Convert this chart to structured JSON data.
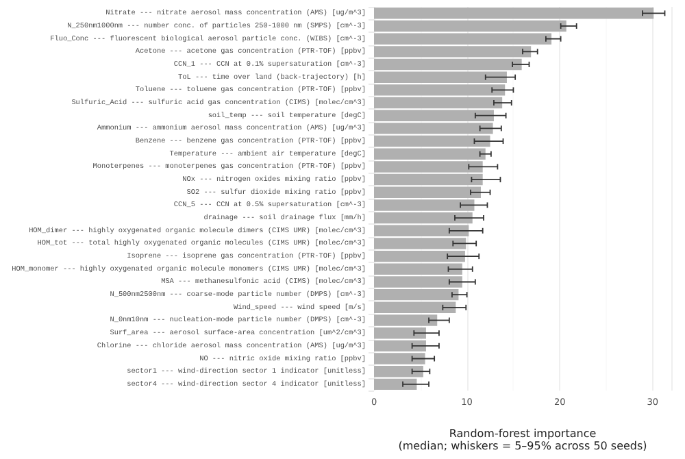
{
  "chart_data": {
    "type": "bar",
    "orientation": "horizontal",
    "xlabel": "Random-forest importance\n(median; whiskers = 5–95% across 50 seeds)",
    "categories": [
      "Nitrate --- nitrate aerosol mass concentration (AMS) [ug/m^3]",
      "N_250nm1000nm --- number conc. of particles 250-1000 nm (SMPS) [cm^-3]",
      "Fluo_Conc --- fluorescent biological aerosol particle conc. (WIBS) [cm^-3]",
      "Acetone --- acetone gas concentration (PTR-TOF) [ppbv]",
      "CCN_1 --- CCN at 0.1% supersaturation [cm^-3]",
      "ToL --- time over land (back-trajectory) [h]",
      "Toluene --- toluene gas concentration (PTR-TOF) [ppbv]",
      "Sulfuric_Acid --- sulfuric acid gas concentration (CIMS) [molec/cm^3]",
      "soil_temp --- soil temperature [degC]",
      "Ammonium --- ammonium aerosol mass concentration (AMS) [ug/m^3]",
      "Benzene --- benzene gas concentration (PTR-TOF) [ppbv]",
      "Temperature --- ambient air temperature [degC]",
      "Monoterpenes --- monoterpenes gas concentration (PTR-TOF) [ppbv]",
      "NOx --- nitrogen oxides mixing ratio [ppbv]",
      "SO2 --- sulfur dioxide mixing ratio [ppbv]",
      "CCN_5 --- CCN at 0.5% supersaturation [cm^-3]",
      "drainage --- soil drainage flux [mm/h]",
      "HOM_dimer --- highly oxygenated organic molecule dimers (CIMS UMR) [molec/cm^3]",
      "HOM_tot --- total highly oxygenated organic molecules (CIMS UMR) [molec/cm^3]",
      "Isoprene --- isoprene gas concentration (PTR-TOF) [ppbv]",
      "HOM_monomer --- highly oxygenated organic molecule monomers (CIMS UMR) [molec/cm^3]",
      "MSA --- methanesulfonic acid (CIMS) [molec/cm^3]",
      "N_500nm2500nm --- coarse-mode particle number (DMPS) [cm^-3]",
      "Wind_speed --- wind speed [m/s]",
      "N_0nm10nm --- nucleation-mode particle number (DMPS) [cm^-3]",
      "Surf_area --- aerosol surface-area concentration [um^2/cm^3]",
      "Chlorine --- chloride aerosol mass concentration (AMS) [ug/m^3]",
      "NO --- nitric oxide mixing ratio [ppbv]",
      "sector1 --- wind-direction sector 1 indicator [unitless]",
      "sector4 --- wind-direction sector 4 indicator [unitless]"
    ],
    "values": [
      30.1,
      20.7,
      19.1,
      16.9,
      15.9,
      14.3,
      14.1,
      13.8,
      12.9,
      12.8,
      12.5,
      12.0,
      11.7,
      11.7,
      11.5,
      10.8,
      10.6,
      10.2,
      9.9,
      9.8,
      9.5,
      9.5,
      9.1,
      8.8,
      6.8,
      5.6,
      5.6,
      5.5,
      5.3,
      4.6
    ],
    "errors": [
      [
        28.9,
        31.3
      ],
      [
        20.1,
        21.8
      ],
      [
        18.5,
        20.1
      ],
      [
        16.0,
        17.6
      ],
      [
        14.9,
        16.7
      ],
      [
        12.0,
        15.2
      ],
      [
        12.7,
        15.0
      ],
      [
        12.9,
        14.8
      ],
      [
        10.9,
        14.2
      ],
      [
        11.4,
        13.7
      ],
      [
        10.8,
        13.9
      ],
      [
        11.4,
        12.6
      ],
      [
        10.2,
        13.3
      ],
      [
        10.5,
        13.6
      ],
      [
        10.4,
        12.5
      ],
      [
        9.3,
        12.2
      ],
      [
        8.7,
        11.8
      ],
      [
        8.1,
        11.7
      ],
      [
        8.5,
        11.0
      ],
      [
        7.9,
        11.3
      ],
      [
        8.0,
        10.6
      ],
      [
        8.1,
        10.9
      ],
      [
        8.4,
        10.0
      ],
      [
        7.4,
        9.9
      ],
      [
        5.9,
        8.1
      ],
      [
        4.3,
        7.0
      ],
      [
        4.1,
        7.0
      ],
      [
        4.1,
        6.5
      ],
      [
        4.1,
        6.0
      ],
      [
        3.1,
        5.9
      ]
    ],
    "color": "#b0b0b0",
    "xlim": [
      0,
      32
    ],
    "xticks": [
      0,
      10,
      20,
      30
    ],
    "grid": true
  }
}
